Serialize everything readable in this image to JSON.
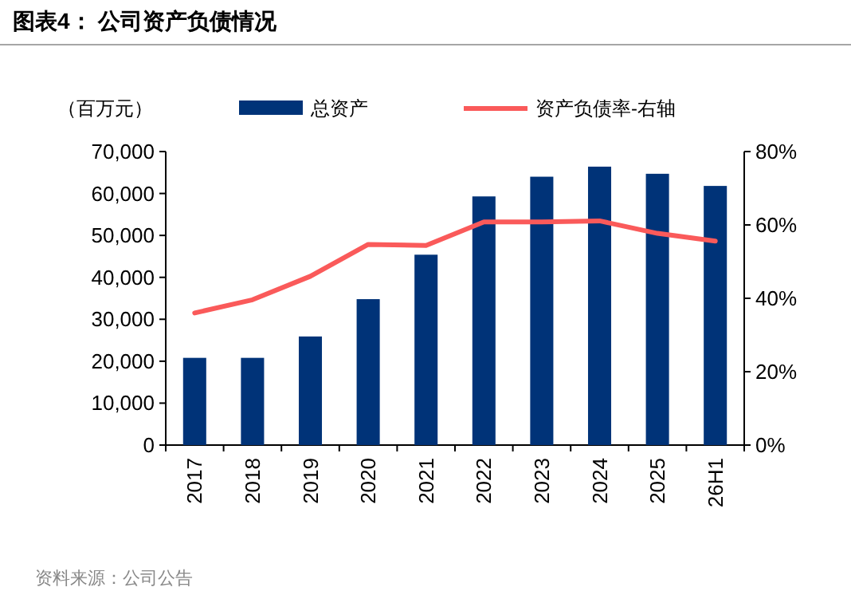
{
  "chart_data": {
    "type": "bar",
    "title": "图表4：  公司资产负债情况",
    "ylabel": "（百万元）",
    "annotations": [
      "资料来源：公司公告"
    ],
    "categories": [
      "2017",
      "2018",
      "2019",
      "2020",
      "2021",
      "2022",
      "2023",
      "2024",
      "2025",
      "26H1"
    ],
    "series": [
      {
        "name": "总资产",
        "color": "#003378",
        "values": [
          20800,
          20800,
          25900,
          34800,
          45400,
          59300,
          64000,
          66400,
          64700,
          61800
        ]
      },
      {
        "name": "资产负债率-右轴",
        "type": "line",
        "axis": "y2",
        "color": "#fa5a5a",
        "values": [
          36.0,
          39.6,
          46.0,
          54.7,
          54.4,
          60.8,
          60.8,
          61.1,
          57.7,
          55.6
        ]
      }
    ],
    "ylim": [
      0,
      70000
    ],
    "yticks": [
      {
        "value": 0,
        "label": "0"
      },
      {
        "value": 10000,
        "label": "10,000"
      },
      {
        "value": 20000,
        "label": "20,000"
      },
      {
        "value": 30000,
        "label": "30,000"
      },
      {
        "value": 40000,
        "label": "40,000"
      },
      {
        "value": 50000,
        "label": "50,000"
      },
      {
        "value": 60000,
        "label": "60,000"
      },
      {
        "value": 70000,
        "label": "70,000"
      }
    ],
    "y2lim": [
      0,
      80
    ],
    "y2ticks": [
      {
        "value": 0,
        "label": "0%"
      },
      {
        "value": 20,
        "label": "20%"
      },
      {
        "value": 40,
        "label": "40%"
      },
      {
        "value": 60,
        "label": "60%"
      },
      {
        "value": 80,
        "label": "80%"
      }
    ],
    "legend": "top",
    "grid": false
  }
}
